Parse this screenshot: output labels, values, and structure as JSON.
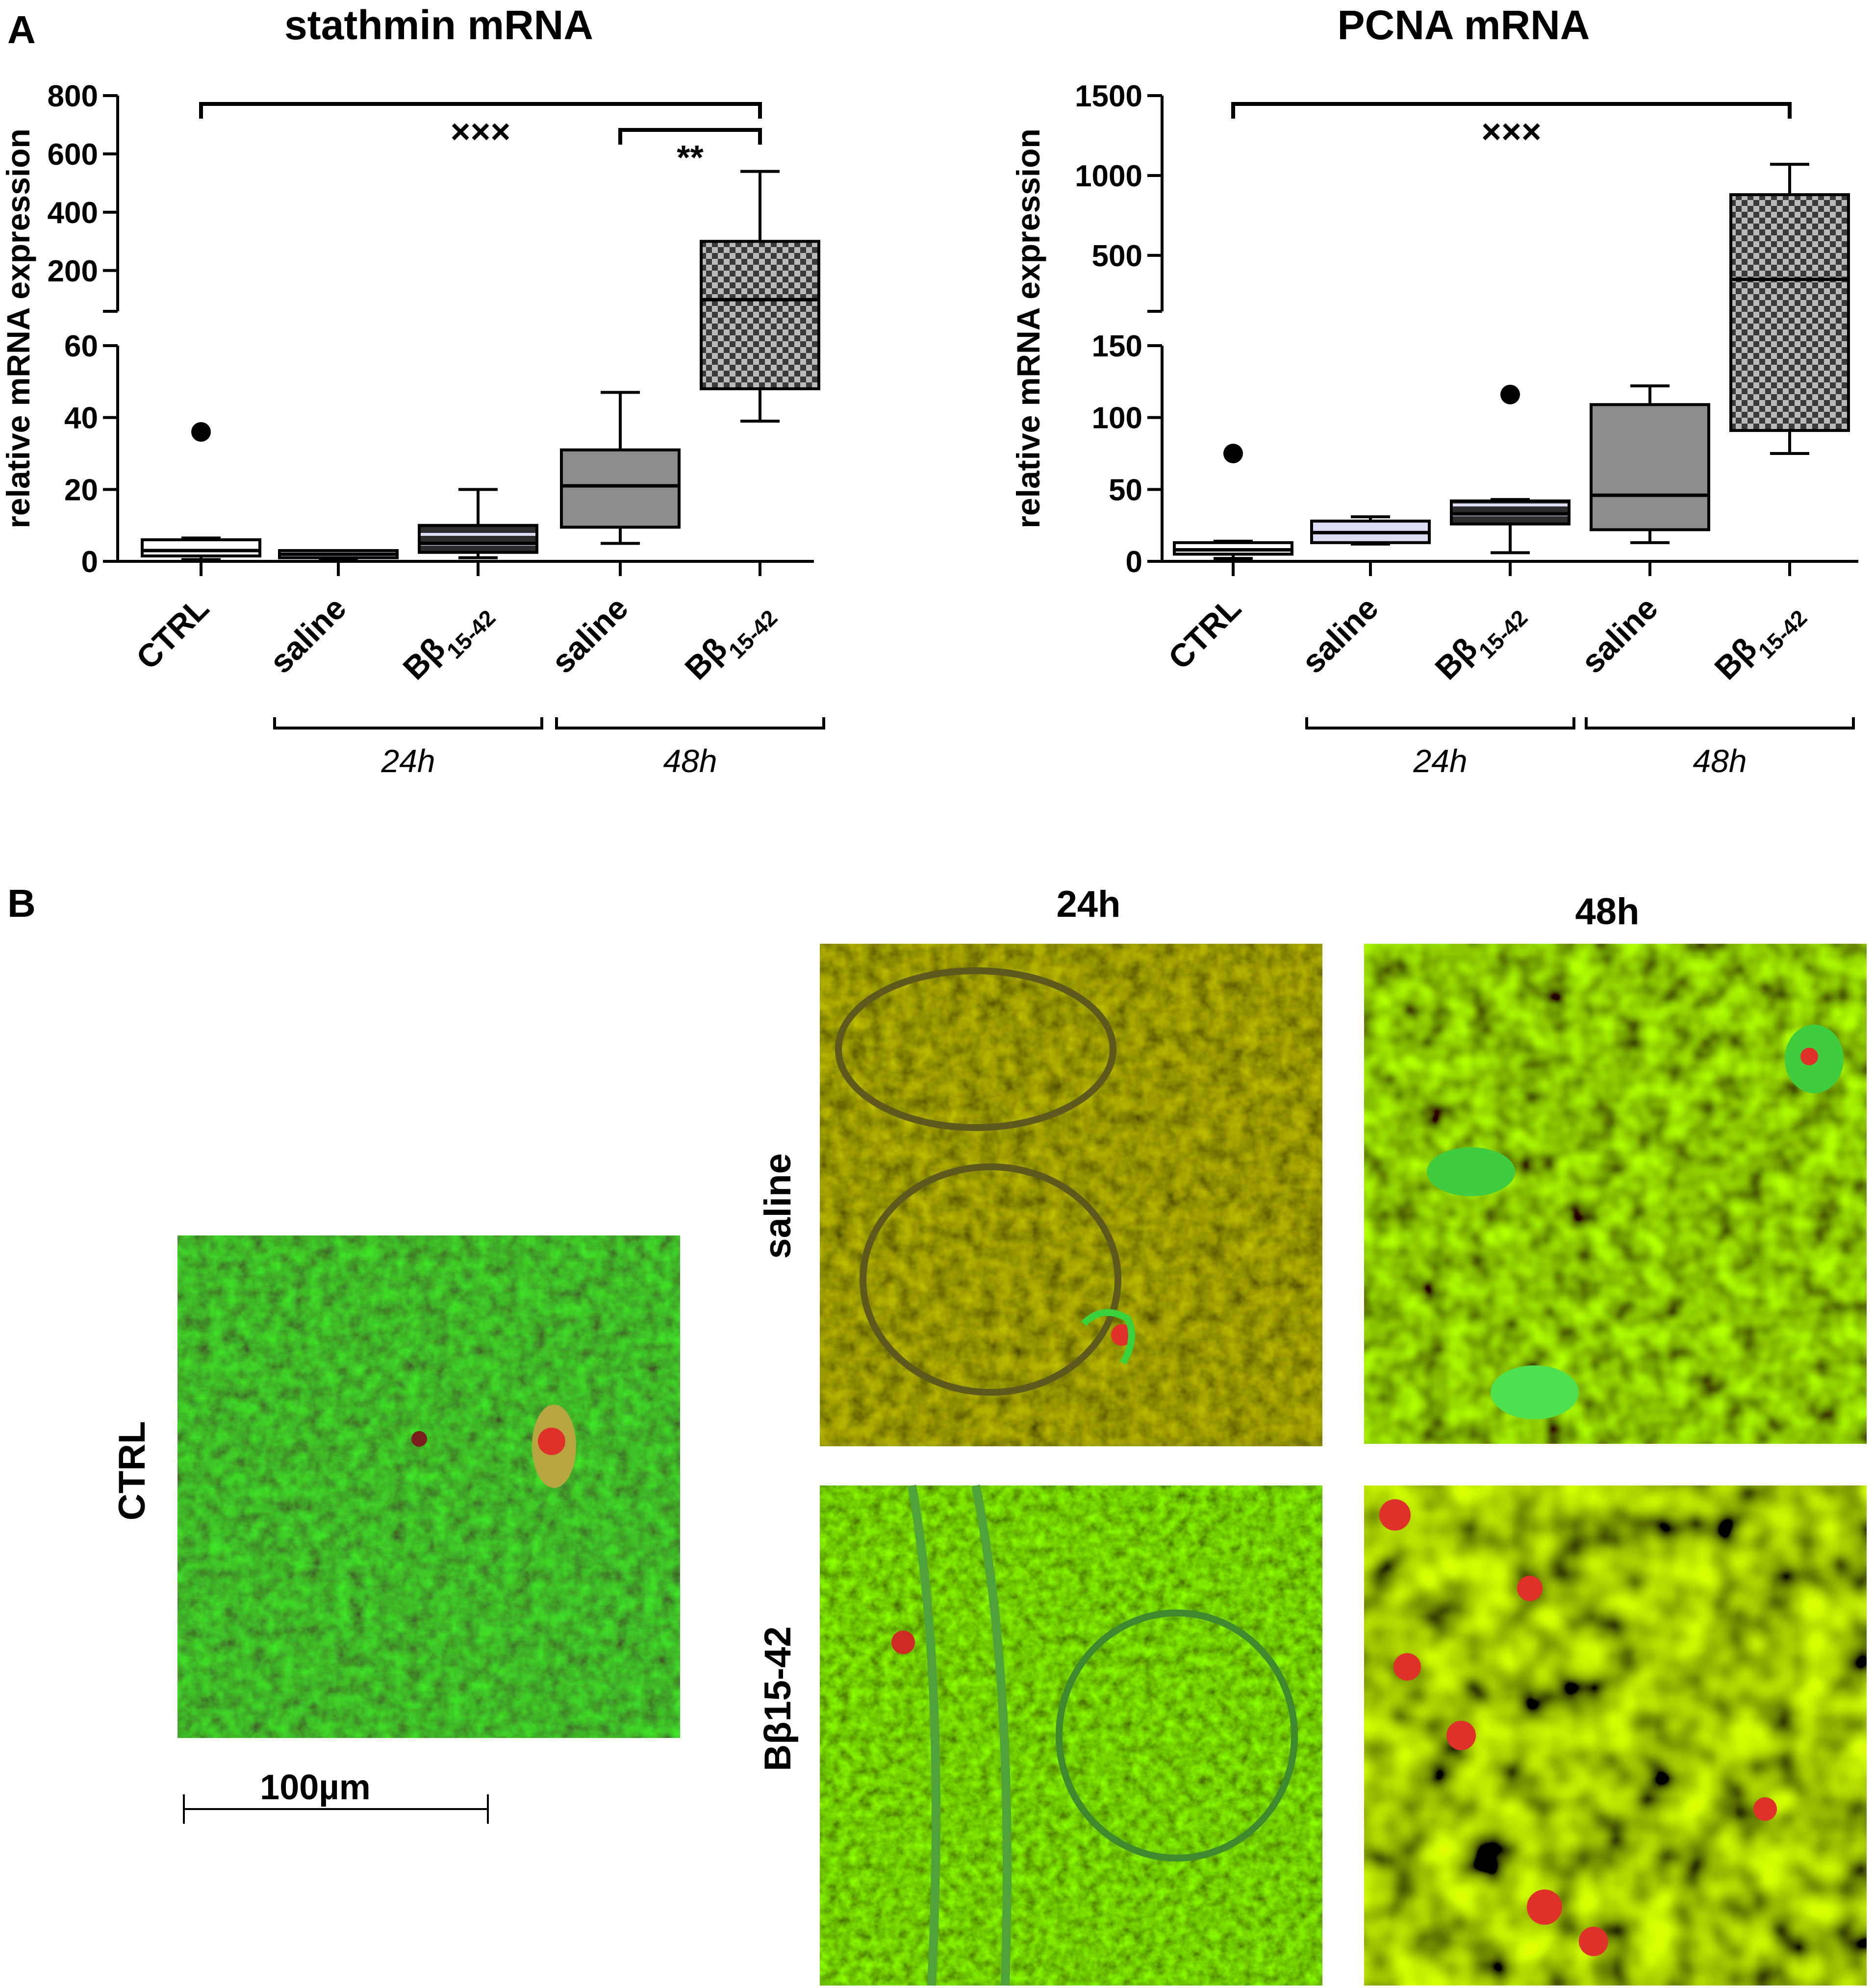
{
  "panel_a_label": "A",
  "panel_b_label": "B",
  "chart_data": [
    {
      "type": "box",
      "title": "stathmin mRNA",
      "ylabel": "relative mRNA expression",
      "y_axis_break": {
        "lower": [
          0,
          60
        ],
        "upper": [
          60,
          800
        ]
      },
      "y_ticks_lower": [
        0,
        20,
        40,
        60
      ],
      "y_ticks_upper": [
        200,
        400,
        600,
        800
      ],
      "categories": [
        "CTRL",
        "saline",
        "Bβ15-42",
        "saline",
        "Bβ15-42"
      ],
      "groups": [
        {
          "label": "24h",
          "categories": [
            1,
            2
          ]
        },
        {
          "label": "48h",
          "categories": [
            3,
            4
          ]
        }
      ],
      "boxes": [
        {
          "category": "CTRL",
          "whisker_low": 0.5,
          "q1": 1.5,
          "median": 3,
          "q3": 6,
          "whisker_high": 6.5,
          "outliers": [
            36
          ]
        },
        {
          "category": "saline",
          "whisker_low": 0.5,
          "q1": 1,
          "median": 2,
          "q3": 3,
          "whisker_high": 3,
          "outliers": []
        },
        {
          "category": "Bβ15-42",
          "whisker_low": 1,
          "q1": 2.5,
          "median": 5,
          "q3": 10,
          "whisker_high": 20,
          "outliers": []
        },
        {
          "category": "saline",
          "whisker_low": 5,
          "q1": 9.5,
          "median": 21,
          "q3": 31,
          "whisker_high": 47,
          "outliers": []
        },
        {
          "category": "Bβ15-42",
          "whisker_low": 39,
          "q1": 48,
          "median": 100,
          "q3": 300,
          "whisker_high": 540,
          "outliers": []
        }
      ],
      "significance": [
        {
          "from": 0,
          "to": 4,
          "label": "×××"
        },
        {
          "from": 3,
          "to": 4,
          "label": "**"
        }
      ]
    },
    {
      "type": "box",
      "title": "PCNA mRNA",
      "ylabel": "relative mRNA expression",
      "y_axis_break": {
        "lower": [
          0,
          150
        ],
        "upper": [
          150,
          1500
        ]
      },
      "y_ticks_lower": [
        0,
        50,
        100,
        150
      ],
      "y_ticks_upper": [
        500,
        1000,
        1500
      ],
      "categories": [
        "CTRL",
        "saline",
        "Bβ15-42",
        "saline",
        "Bβ15-42"
      ],
      "groups": [
        {
          "label": "24h",
          "categories": [
            1,
            2
          ]
        },
        {
          "label": "48h",
          "categories": [
            3,
            4
          ]
        }
      ],
      "boxes": [
        {
          "category": "CTRL",
          "whisker_low": 2,
          "q1": 5,
          "median": 8,
          "q3": 13,
          "whisker_high": 14,
          "outliers": [
            75
          ]
        },
        {
          "category": "saline",
          "whisker_low": 12,
          "q1": 13,
          "median": 20,
          "q3": 28,
          "whisker_high": 31,
          "outliers": []
        },
        {
          "category": "Bβ15-42",
          "whisker_low": 6,
          "q1": 26,
          "median": 33,
          "q3": 42,
          "whisker_high": 43,
          "outliers": [
            116
          ]
        },
        {
          "category": "saline",
          "whisker_low": 13,
          "q1": 22,
          "median": 46,
          "q3": 109,
          "whisker_high": 122,
          "outliers": []
        },
        {
          "category": "Bβ15-42",
          "whisker_low": 75,
          "q1": 91,
          "median": 350,
          "q3": 880,
          "whisker_high": 1070,
          "outliers": []
        }
      ],
      "significance": [
        {
          "from": 0,
          "to": 4,
          "label": "×××"
        }
      ]
    }
  ],
  "colors": {
    "box_ctrl": "#ffffff",
    "box_saline24": "#dcdcf2",
    "box_b24": "#3a3a3a",
    "box_saline48": "#8c8c8c",
    "box_b48": "#555555"
  },
  "micrographs": {
    "col_24h": "24h",
    "col_48h": "48h",
    "row_saline": "saline",
    "row_b": "Bβ15-42",
    "ctrl": "CTRL",
    "scale_bar": "100µm"
  }
}
